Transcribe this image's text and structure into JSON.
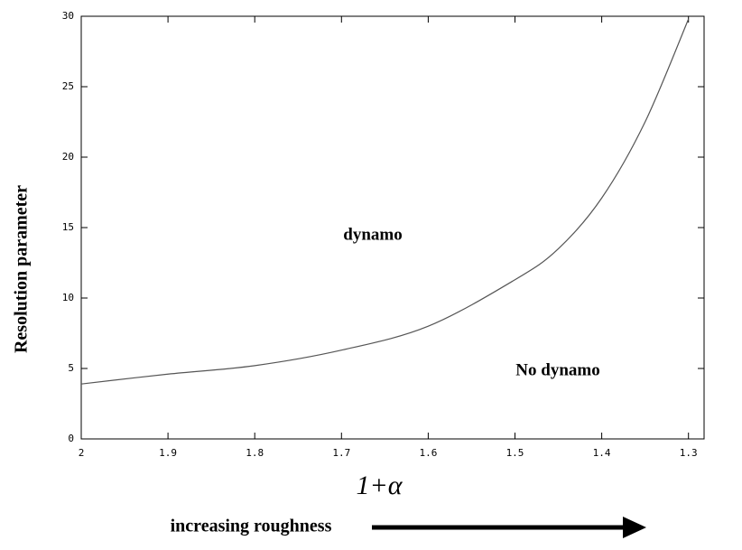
{
  "chart_data": {
    "type": "line",
    "x_label": "1+α",
    "y_label": "Resolution parameter",
    "footer": "increasing  roughness",
    "annotations": [
      "dynamo",
      "No dynamo"
    ],
    "x": [
      2,
      1.9,
      1.8,
      1.7,
      1.6,
      1.5,
      1.45,
      1.4,
      1.35,
      1.3
    ],
    "values": [
      3.9,
      4.6,
      5.2,
      6.3,
      8.0,
      11.3,
      13.5,
      17.1,
      22.5,
      29.8
    ],
    "color": "#555555",
    "xlim": [
      2,
      1.282
    ],
    "ylim": [
      0,
      30
    ],
    "xticks": [
      2,
      1.9,
      1.8,
      1.7,
      1.6,
      1.5,
      1.4,
      1.3
    ],
    "yticks": [
      0,
      5,
      10,
      15,
      20,
      25,
      30
    ],
    "grid": false
  }
}
